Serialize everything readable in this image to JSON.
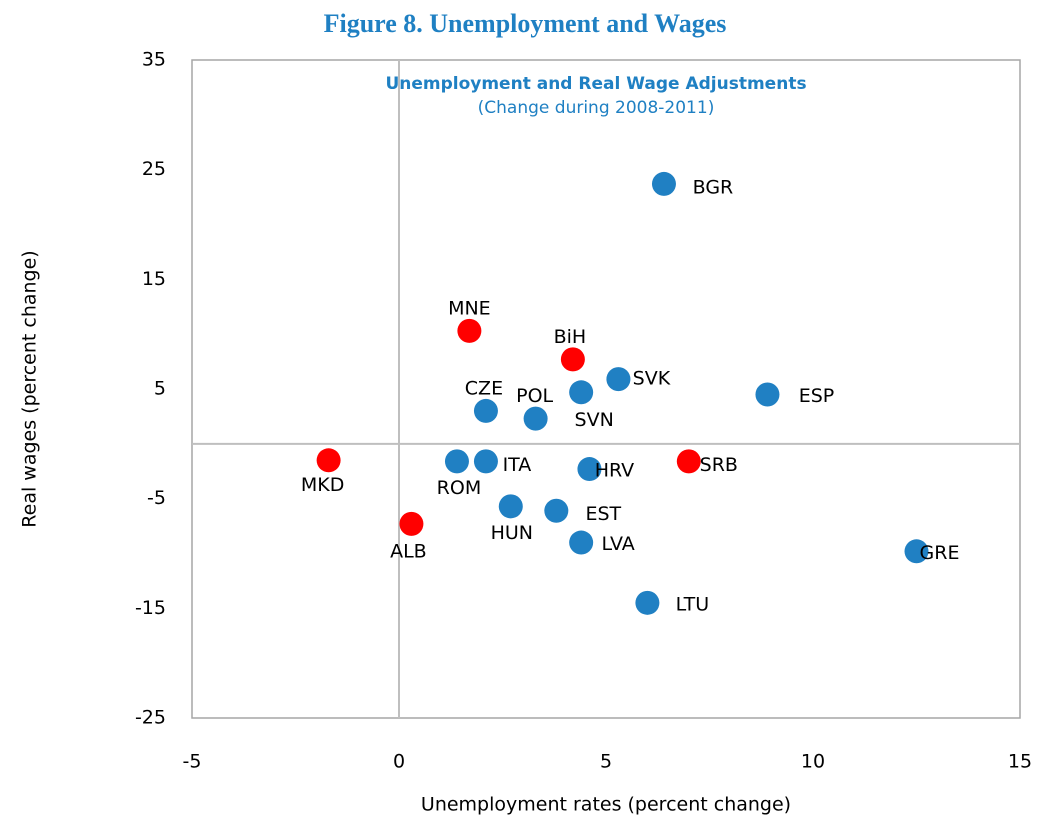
{
  "chart_data": {
    "type": "scatter",
    "title": "Figure 8. Unemployment and Wages",
    "subtitle": "Unemployment and Real Wage Adjustments",
    "note": "(Change during 2008-2011)",
    "xlabel": "Unemployment  rates (percent change)",
    "ylabel": "Real wages (percent change)",
    "labels": [
      "BGR",
      "CZE",
      "POL",
      "SVN",
      "SVK",
      "ESP",
      "ROM",
      "ITA",
      "HRV",
      "HUN",
      "EST",
      "LVA",
      "LTU",
      "GRE",
      "MNE",
      "BiH",
      "MKD",
      "ALB",
      "SRB"
    ],
    "x": [
      6.4,
      2.1,
      3.3,
      4.4,
      5.3,
      8.9,
      1.4,
      2.1,
      4.6,
      2.7,
      3.8,
      4.4,
      6.0,
      12.5,
      1.7,
      4.2,
      -1.7,
      0.3,
      7.0
    ],
    "y": [
      23.7,
      3.0,
      2.3,
      4.7,
      5.9,
      4.5,
      -1.6,
      -1.6,
      -2.3,
      -5.7,
      -6.1,
      -9.0,
      -14.5,
      -9.8,
      10.3,
      7.7,
      -1.5,
      -7.3,
      -1.6
    ],
    "colors": [
      "#2080c3",
      "#2080c3",
      "#2080c3",
      "#2080c3",
      "#2080c3",
      "#2080c3",
      "#2080c3",
      "#2080c3",
      "#2080c3",
      "#2080c3",
      "#2080c3",
      "#2080c3",
      "#2080c3",
      "#2080c3",
      "#ff0000",
      "#ff0000",
      "#ff0000",
      "#ff0000",
      "#ff0000"
    ],
    "xlim": [
      -5,
      15
    ],
    "xticks": [
      -5,
      0,
      5,
      10,
      15
    ],
    "ylim": [
      -25,
      35
    ],
    "yticks": [
      -25,
      -15,
      -5,
      5,
      15,
      25,
      35
    ]
  }
}
